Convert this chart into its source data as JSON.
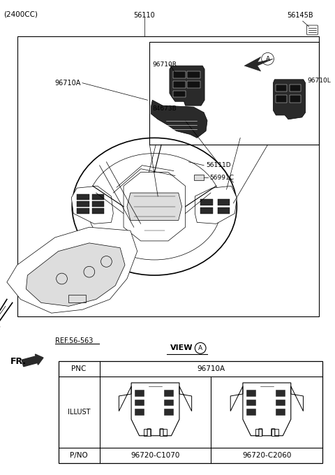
{
  "bg_color": "#ffffff",
  "fig_width": 4.8,
  "fig_height": 6.8,
  "dpi": 100,
  "top_left_text": "(2400CC)",
  "part_56145B": "56145B",
  "part_56110": "56110",
  "part_96710R": "96710R",
  "part_96710L": "96710L",
  "part_84673B": "84673B",
  "part_96710A": "96710A",
  "part_56991C": "56991C",
  "part_56111D": "56111D",
  "ref_text": "REF.56-563",
  "fr_text": "FR.",
  "view_text": "VIEW",
  "view_circle_text": "A",
  "pnc_label": "PNC",
  "pnc_value": "96710A",
  "illust_label": "ILLUST",
  "pno_label": "P/NO",
  "pno_val1": "96720-C1070",
  "pno_val2": "96720-C2060",
  "lw_main": 0.8,
  "lw_thick": 1.2,
  "lw_thin": 0.5,
  "line_color": "#000000",
  "dark_fill": "#2a2a2a",
  "mid_fill": "#666666",
  "light_fill": "#aaaaaa",
  "very_light_fill": "#dddddd"
}
